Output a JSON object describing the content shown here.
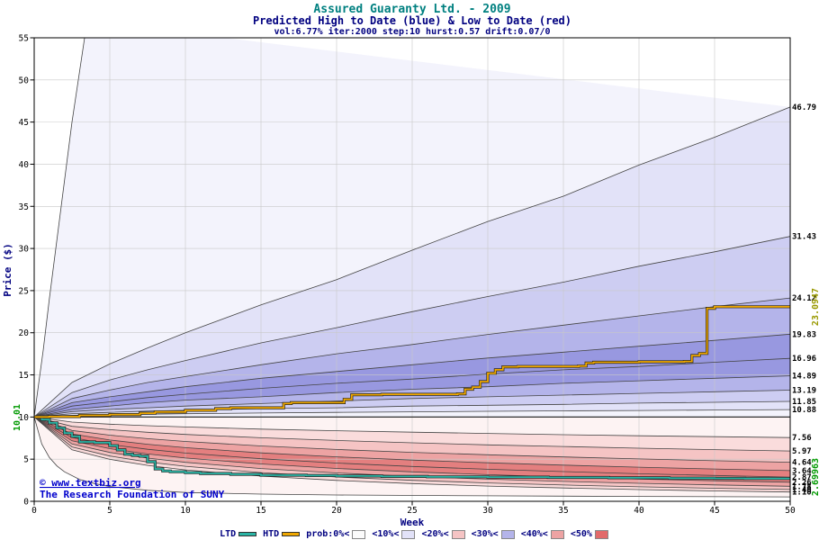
{
  "title": "Assured Guaranty Ltd. - 2009",
  "subtitle": "Predicted High to Date (blue) &  Low to Date (red)",
  "params_line": "vol:6.77% iter:2000 step:10 hurst:0.57 drift:0.07/0",
  "watermark": {
    "line1": "© www.textbiz.org",
    "line2": "The Research Foundation of SUNY"
  },
  "legend": {
    "series": [
      {
        "label": "LTD",
        "color": "#2ab5a5"
      },
      {
        "label": "HTD",
        "color": "#f0a800"
      }
    ],
    "bands": [
      {
        "label": "prob:0%<",
        "color": "#fbfbfb"
      },
      {
        "label": "<10%<",
        "color": "#e2e2f8"
      },
      {
        "label": "<20%<",
        "color": "#f5c4c4"
      },
      {
        "label": "<30%<",
        "color": "#b4b4ea"
      },
      {
        "label": "<40%<",
        "color": "#eda3a3"
      },
      {
        "label": "<50%",
        "color": "#e26a6a"
      }
    ]
  },
  "chart_data": {
    "type": "area",
    "title": "Assured Guaranty Ltd. - 2009",
    "xlabel": "Week",
    "ylabel": "Price ($)",
    "xlim": [
      0,
      50
    ],
    "ylim": [
      0,
      55
    ],
    "x_ticks": [
      0,
      5,
      10,
      15,
      20,
      25,
      30,
      35,
      40,
      45,
      50
    ],
    "y_ticks": [
      0,
      5,
      10,
      15,
      20,
      25,
      30,
      35,
      40,
      45,
      50,
      55
    ],
    "grid": true,
    "center": 10.01,
    "start_price_label": "10.01",
    "htd_final_label": "23.0947",
    "ltd_final_label": "2.69963",
    "colors": {
      "grid": "#c8c8c8",
      "boundary_line": "#444444",
      "center_line": "#1a1a1a",
      "htd": "#f0a800",
      "ltd": "#2ab5a5",
      "line_outline": "#222222",
      "blue_shades": [
        "#f3f3fc",
        "#e2e2f8",
        "#cdcdf2",
        "#b4b4ea",
        "#9898e0"
      ],
      "red_shades": [
        "#fdf3f3",
        "#fadcdc",
        "#f5c4c4",
        "#eda3a3",
        "#e47f7f"
      ]
    },
    "weeks": [
      0,
      2.5,
      5,
      7.5,
      10,
      15,
      20,
      25,
      30,
      35,
      40,
      45,
      50
    ],
    "upper_boundaries": [
      {
        "label": "",
        "points": [
          [
            0,
            10.01
          ],
          [
            0.3,
            14
          ],
          [
            0.6,
            18
          ],
          [
            1,
            24
          ],
          [
            1.5,
            31
          ],
          [
            2,
            38
          ],
          [
            2.5,
            45
          ],
          [
            3,
            51
          ],
          [
            3.5,
            57
          ]
        ]
      },
      {
        "label": "46.79",
        "values": [
          10.01,
          14.1,
          16.3,
          18.2,
          20.0,
          23.3,
          26.3,
          29.8,
          33.2,
          36.2,
          39.9,
          43.2,
          46.79
        ]
      },
      {
        "label": "31.43",
        "values": [
          10.01,
          12.9,
          14.4,
          15.6,
          16.7,
          18.8,
          20.6,
          22.5,
          24.3,
          26.0,
          27.9,
          29.6,
          31.43
        ]
      },
      {
        "label": "24.12",
        "values": [
          10.01,
          12.2,
          13.2,
          14.1,
          14.8,
          16.2,
          17.5,
          18.6,
          19.8,
          20.9,
          22.0,
          23.1,
          24.12
        ]
      },
      {
        "label": "19.83",
        "values": [
          10.01,
          11.7,
          12.4,
          13.0,
          13.6,
          14.6,
          15.4,
          16.2,
          17.0,
          17.7,
          18.4,
          19.1,
          19.83
        ]
      },
      {
        "label": "16.96",
        "values": [
          10.01,
          11.3,
          11.8,
          12.3,
          12.7,
          13.4,
          14.0,
          14.5,
          15.1,
          15.6,
          16.0,
          16.5,
          16.96
        ]
      },
      {
        "label": "14.89",
        "values": [
          10.01,
          10.9,
          11.3,
          11.7,
          12.0,
          12.4,
          12.9,
          13.3,
          13.6,
          14.0,
          14.3,
          14.6,
          14.89
        ]
      },
      {
        "label": "13.19",
        "values": [
          10.01,
          10.65,
          10.9,
          11.1,
          11.3,
          11.6,
          11.9,
          12.2,
          12.4,
          12.6,
          12.8,
          13.0,
          13.19
        ]
      },
      {
        "label": "11.85",
        "values": [
          10.01,
          10.4,
          10.55,
          10.7,
          10.8,
          11.0,
          11.1,
          11.3,
          11.4,
          11.5,
          11.65,
          11.75,
          11.85
        ]
      },
      {
        "label": "10.88",
        "values": [
          10.01,
          10.2,
          10.28,
          10.34,
          10.39,
          10.48,
          10.55,
          10.62,
          10.68,
          10.73,
          10.78,
          10.83,
          10.88
        ]
      }
    ],
    "lower_boundaries": [
      {
        "label": "7.56",
        "values": [
          10.01,
          9.4,
          9.15,
          8.97,
          8.82,
          8.57,
          8.37,
          8.2,
          8.05,
          7.9,
          7.78,
          7.67,
          7.56
        ]
      },
      {
        "label": "5.97",
        "values": [
          10.01,
          8.9,
          8.5,
          8.19,
          7.94,
          7.54,
          7.22,
          6.94,
          6.7,
          6.5,
          6.3,
          6.13,
          5.97
        ]
      },
      {
        "label": "4.64",
        "values": [
          10.01,
          8.4,
          7.85,
          7.43,
          7.1,
          6.57,
          6.15,
          5.81,
          5.52,
          5.26,
          5.03,
          4.82,
          4.64
        ]
      },
      {
        "label": "3.64",
        "values": [
          10.01,
          8.0,
          7.27,
          6.77,
          6.37,
          5.75,
          5.28,
          4.89,
          4.57,
          4.29,
          4.05,
          3.83,
          3.64
        ]
      },
      {
        "label": "2.87",
        "values": [
          10.01,
          7.57,
          6.74,
          6.17,
          5.72,
          5.05,
          4.54,
          4.13,
          3.8,
          3.52,
          3.27,
          3.06,
          2.87
        ]
      },
      {
        "label": "2.26",
        "values": [
          10.01,
          7.18,
          6.25,
          5.62,
          5.14,
          4.43,
          3.9,
          3.49,
          3.16,
          2.88,
          2.64,
          2.44,
          2.26
        ]
      },
      {
        "label": "1.78",
        "values": [
          10.01,
          6.8,
          5.8,
          5.13,
          4.62,
          3.89,
          3.36,
          2.95,
          2.63,
          2.36,
          2.14,
          1.94,
          1.78
        ]
      },
      {
        "label": "1.40",
        "values": [
          10.01,
          6.45,
          5.37,
          4.67,
          4.15,
          3.41,
          2.88,
          2.49,
          2.18,
          1.93,
          1.72,
          1.55,
          1.4
        ]
      },
      {
        "label": "1.10",
        "values": [
          10.01,
          6.11,
          4.98,
          4.26,
          3.73,
          2.99,
          2.48,
          2.1,
          1.81,
          1.58,
          1.39,
          1.23,
          1.1
        ]
      },
      {
        "label": "",
        "points": [
          [
            0,
            10.01
          ],
          [
            0.5,
            6.8
          ],
          [
            1,
            5.2
          ],
          [
            1.5,
            4.2
          ],
          [
            2,
            3.5
          ],
          [
            3,
            2.6
          ],
          [
            4,
            2.1
          ],
          [
            5,
            1.75
          ],
          [
            7.5,
            1.3
          ],
          [
            10,
            1.05
          ],
          [
            15,
            0.85
          ],
          [
            20,
            0.75
          ],
          [
            30,
            0.65
          ],
          [
            40,
            0.58
          ],
          [
            50,
            0.52
          ]
        ]
      }
    ],
    "htd_steps": [
      [
        0,
        10.01
      ],
      [
        1,
        10.05
      ],
      [
        3,
        10.2
      ],
      [
        5,
        10.3
      ],
      [
        7,
        10.45
      ],
      [
        8,
        10.6
      ],
      [
        10,
        10.8
      ],
      [
        12,
        11.0
      ],
      [
        13,
        11.1
      ],
      [
        16.5,
        11.6
      ],
      [
        17,
        11.7
      ],
      [
        20.5,
        12.1
      ],
      [
        21,
        12.65
      ],
      [
        23,
        12.7
      ],
      [
        28,
        12.75
      ],
      [
        28.5,
        13.3
      ],
      [
        29,
        13.55
      ],
      [
        29.5,
        14.2
      ],
      [
        30,
        15.2
      ],
      [
        30.5,
        15.6
      ],
      [
        31,
        15.95
      ],
      [
        32,
        16.0
      ],
      [
        36,
        16.05
      ],
      [
        36.5,
        16.4
      ],
      [
        37,
        16.5
      ],
      [
        40,
        16.55
      ],
      [
        43,
        16.6
      ],
      [
        43.5,
        17.3
      ],
      [
        44,
        17.55
      ],
      [
        44.5,
        22.9
      ],
      [
        45,
        23.09
      ],
      [
        50,
        23.09
      ]
    ],
    "ltd_steps": [
      [
        0,
        10.01
      ],
      [
        0.5,
        9.7
      ],
      [
        1,
        9.3
      ],
      [
        1.5,
        8.7
      ],
      [
        2,
        8.1
      ],
      [
        2.5,
        7.7
      ],
      [
        3,
        7.05
      ],
      [
        4,
        6.95
      ],
      [
        5,
        6.6
      ],
      [
        5.5,
        6.1
      ],
      [
        6,
        5.6
      ],
      [
        6.5,
        5.45
      ],
      [
        7,
        5.35
      ],
      [
        7.5,
        4.7
      ],
      [
        8,
        3.85
      ],
      [
        8.5,
        3.6
      ],
      [
        9,
        3.5
      ],
      [
        10,
        3.4
      ],
      [
        11,
        3.3
      ],
      [
        13,
        3.2
      ],
      [
        15,
        3.1
      ],
      [
        18,
        3.05
      ],
      [
        20,
        3.0
      ],
      [
        23,
        2.95
      ],
      [
        26,
        2.9
      ],
      [
        30,
        2.87
      ],
      [
        34,
        2.83
      ],
      [
        38,
        2.79
      ],
      [
        42,
        2.75
      ],
      [
        45,
        2.72
      ],
      [
        47,
        2.7
      ],
      [
        50,
        2.7
      ]
    ],
    "right_labels": [
      {
        "text": "46.79",
        "value": 46.79
      },
      {
        "text": "31.43",
        "value": 31.43
      },
      {
        "text": "24.12",
        "value": 24.12
      },
      {
        "text": "19.83",
        "value": 19.83
      },
      {
        "text": "16.96",
        "value": 16.96
      },
      {
        "text": "14.89",
        "value": 14.89
      },
      {
        "text": "13.19",
        "value": 13.19
      },
      {
        "text": "11.85",
        "value": 11.85
      },
      {
        "text": "10.88",
        "value": 10.88
      },
      {
        "text": "7.56",
        "value": 7.56
      },
      {
        "text": "5.97",
        "value": 5.97
      },
      {
        "text": "4.64",
        "value": 4.64
      },
      {
        "text": "3.64",
        "value": 3.64
      },
      {
        "text": "2.87",
        "value": 2.87
      },
      {
        "text": "2.26",
        "value": 2.26
      },
      {
        "text": "1.78",
        "value": 1.78
      },
      {
        "text": "1.40",
        "value": 1.4
      },
      {
        "text": "1.10",
        "value": 1.1
      }
    ]
  }
}
